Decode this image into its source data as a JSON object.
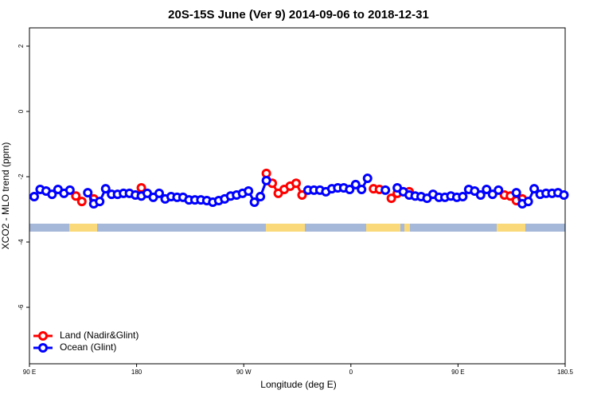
{
  "chart_data": {
    "type": "line",
    "title": "20S-15S June (Ver 9)   2014-09-06 to 2018-12-31",
    "x_label": "Longitude (deg E)",
    "y_label": "XCO2 - MLO trend (ppm)",
    "x": [
      94,
      99,
      104,
      109,
      114,
      119,
      124,
      129,
      134,
      139,
      144,
      149,
      154,
      159,
      164,
      169,
      174,
      179,
      184,
      189,
      194,
      199,
      204,
      209,
      214,
      219,
      224,
      229,
      234,
      239,
      244,
      249,
      254,
      259,
      264,
      269,
      274,
      279,
      284,
      289,
      294,
      299,
      304,
      309,
      314,
      319,
      324,
      329,
      334,
      339,
      344,
      349,
      354,
      359,
      364,
      369,
      374,
      379,
      384,
      389,
      394,
      399,
      404,
      409,
      414,
      419,
      424,
      429,
      434,
      439,
      444,
      449,
      454,
      459,
      464,
      469,
      474,
      479,
      484,
      489,
      494,
      499,
      504,
      509,
      514,
      519,
      524,
      529,
      534,
      539
    ],
    "series": [
      {
        "name": "Land (Nadir&Glint)",
        "color": "#ff0000",
        "values": [
          null,
          null,
          null,
          null,
          null,
          null,
          null,
          -2.59,
          -2.76,
          null,
          -2.68,
          null,
          null,
          null,
          null,
          null,
          null,
          null,
          -2.34,
          null,
          null,
          null,
          null,
          null,
          null,
          null,
          null,
          null,
          null,
          null,
          null,
          null,
          null,
          null,
          null,
          null,
          null,
          null,
          null,
          -1.9,
          -2.2,
          -2.51,
          -2.39,
          -2.29,
          -2.2,
          -2.56,
          null,
          null,
          null,
          null,
          null,
          null,
          null,
          null,
          null,
          null,
          null,
          -2.37,
          -2.39,
          null,
          -2.66,
          -2.51,
          null,
          -2.46,
          null,
          null,
          null,
          null,
          null,
          null,
          null,
          null,
          null,
          null,
          null,
          null,
          null,
          null,
          null,
          -2.56,
          -2.59,
          -2.73,
          -2.68,
          null,
          null,
          null,
          null,
          null,
          null,
          null
        ]
      },
      {
        "name": "Ocean (Glint)",
        "color": "#0000ff",
        "values": [
          -2.61,
          -2.39,
          -2.44,
          -2.54,
          -2.39,
          -2.51,
          -2.41,
          null,
          null,
          -2.49,
          -2.83,
          -2.76,
          -2.37,
          -2.54,
          -2.54,
          -2.51,
          -2.51,
          -2.56,
          -2.59,
          -2.51,
          -2.63,
          -2.51,
          -2.68,
          -2.61,
          -2.63,
          -2.63,
          -2.71,
          -2.71,
          -2.71,
          -2.73,
          -2.78,
          -2.73,
          -2.68,
          -2.59,
          -2.56,
          -2.51,
          -2.44,
          -2.78,
          -2.61,
          -2.12,
          null,
          null,
          null,
          null,
          null,
          null,
          -2.41,
          -2.41,
          -2.41,
          -2.46,
          -2.37,
          -2.34,
          -2.34,
          -2.39,
          -2.24,
          -2.39,
          -2.05,
          null,
          null,
          -2.41,
          null,
          -2.34,
          -2.46,
          -2.56,
          -2.59,
          -2.61,
          -2.66,
          -2.54,
          -2.63,
          -2.63,
          -2.59,
          -2.63,
          -2.61,
          -2.39,
          -2.44,
          -2.56,
          -2.39,
          -2.54,
          -2.41,
          null,
          null,
          -2.49,
          -2.83,
          -2.76,
          -2.37,
          -2.54,
          -2.51,
          -2.51,
          -2.49,
          -2.56
        ]
      }
    ],
    "xlim": [
      90,
      540
    ],
    "xticks": [
      {
        "value": 90,
        "label": "90 E"
      },
      180,
      {
        "value": 270,
        "label": "90 W"
      },
      {
        "value": 360,
        "label": "0"
      },
      {
        "value": 450,
        "label": "90 E"
      },
      180.5
    ],
    "ylim": [
      -7.73,
      2.56
    ],
    "yticks": [
      -6,
      -4,
      -2,
      0,
      2
    ],
    "legend_position": "bottom-left"
  }
}
